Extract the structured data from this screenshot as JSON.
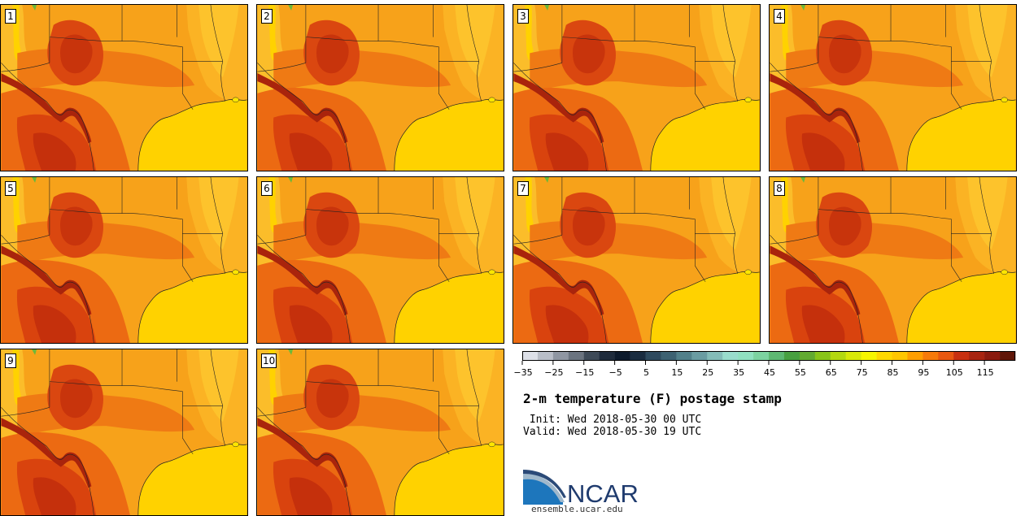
{
  "panels": [
    {
      "label": "1"
    },
    {
      "label": "2"
    },
    {
      "label": "3"
    },
    {
      "label": "4"
    },
    {
      "label": "5"
    },
    {
      "label": "6"
    },
    {
      "label": "7"
    },
    {
      "label": "8"
    },
    {
      "label": "9"
    },
    {
      "label": "10"
    }
  ],
  "colorbar": {
    "colors": [
      "#dde0e8",
      "#b9bec8",
      "#8f96a2",
      "#6b7480",
      "#3e4a58",
      "#1f2b3c",
      "#0d1a2c",
      "#1a2c40",
      "#2e4a5e",
      "#3d6272",
      "#52808a",
      "#6a9ca2",
      "#84bcb8",
      "#99dccc",
      "#90e0c0",
      "#7cd2a0",
      "#5eb872",
      "#48a040",
      "#62aa30",
      "#88c418",
      "#b4d810",
      "#d8e808",
      "#f6f600",
      "#ffd800",
      "#ffc600",
      "#ff9e00",
      "#f67a0a",
      "#e85810",
      "#c83010",
      "#a82410",
      "#8a1a0e",
      "#601608"
    ],
    "tick_labels": [
      "−35",
      "−25",
      "−15",
      "−5",
      "5",
      "15",
      "25",
      "35",
      "45",
      "55",
      "65",
      "75",
      "85",
      "95",
      "105",
      "115"
    ]
  },
  "title": "2-m temperature (F) postage stamp",
  "init": " Init: Wed 2018-05-30 00 UTC",
  "valid": "Valid: Wed 2018-05-30 19 UTC",
  "logo_text": "NCAR",
  "url": "ensemble.ucar.edu"
}
